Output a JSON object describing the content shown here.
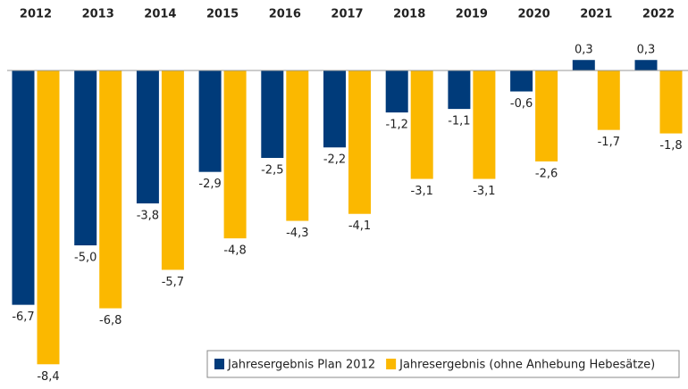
{
  "chart_data": {
    "type": "bar",
    "categories": [
      "2012",
      "2013",
      "2014",
      "2015",
      "2016",
      "2017",
      "2018",
      "2019",
      "2020",
      "2021",
      "2022"
    ],
    "series": [
      {
        "name": "Jahresergebnis Plan 2012",
        "color": "#003b7a",
        "values": [
          -6.7,
          -5.0,
          -3.8,
          -2.9,
          -2.5,
          -2.2,
          -1.2,
          -1.1,
          -0.6,
          0.3,
          0.3
        ],
        "value_labels": [
          "-6,7",
          "-5,0",
          "-3,8",
          "-2,9",
          "-2,5",
          "-2,2",
          "-1,2",
          "-1,1",
          "-0,6",
          "0,3",
          "0,3"
        ]
      },
      {
        "name": "Jahresergebnis (ohne Anhebung Hebesätze)",
        "color": "#fbb800",
        "values": [
          -8.4,
          -6.8,
          -5.7,
          -4.8,
          -4.3,
          -4.1,
          -3.1,
          -3.1,
          -2.6,
          -1.7,
          -1.8
        ],
        "value_labels": [
          "-8,4",
          "-6,8",
          "-5,7",
          "-4,8",
          "-4,3",
          "-4,1",
          "-3,1",
          "-3,1",
          "-2,6",
          "-1,7",
          "-1,8"
        ]
      }
    ],
    "legend": "bottom-right"
  }
}
